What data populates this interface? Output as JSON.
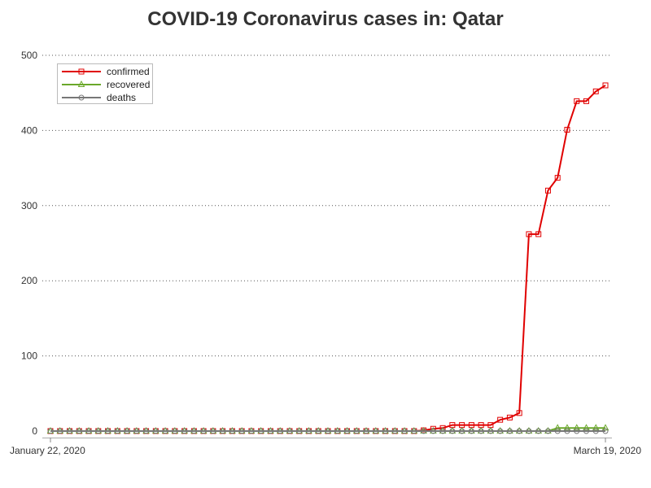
{
  "chart_data": {
    "type": "line",
    "title": "COVID-19 Coronavirus cases in: Qatar",
    "x_start_label": "January 22, 2020",
    "x_end_label": "March 19, 2020",
    "x_ticks": [
      "January 22, 2020",
      "March 19, 2020"
    ],
    "ylim": [
      0,
      500
    ],
    "y_ticks": [
      0,
      100,
      200,
      300,
      400,
      500
    ],
    "grid": "horizontal dotted",
    "legend_position": "top-left",
    "series": [
      {
        "name": "confirmed",
        "color": "#e00000",
        "marker": "square",
        "values": [
          0,
          0,
          0,
          0,
          0,
          0,
          0,
          0,
          0,
          0,
          0,
          0,
          0,
          0,
          0,
          0,
          0,
          0,
          0,
          0,
          0,
          0,
          0,
          0,
          0,
          0,
          0,
          0,
          0,
          0,
          0,
          0,
          0,
          0,
          0,
          0,
          0,
          0,
          0,
          1,
          3,
          4,
          8,
          8,
          8,
          8,
          8,
          15,
          18,
          24,
          262,
          262,
          320,
          337,
          401,
          439,
          439,
          452,
          460
        ]
      },
      {
        "name": "recovered",
        "color": "#6aa82a",
        "marker": "triangle",
        "values": [
          0,
          0,
          0,
          0,
          0,
          0,
          0,
          0,
          0,
          0,
          0,
          0,
          0,
          0,
          0,
          0,
          0,
          0,
          0,
          0,
          0,
          0,
          0,
          0,
          0,
          0,
          0,
          0,
          0,
          0,
          0,
          0,
          0,
          0,
          0,
          0,
          0,
          0,
          0,
          0,
          0,
          0,
          0,
          0,
          0,
          0,
          0,
          0,
          0,
          0,
          0,
          0,
          0,
          4,
          4,
          4,
          4,
          4,
          4
        ]
      },
      {
        "name": "deaths",
        "color": "#777777",
        "marker": "circle",
        "values": [
          0,
          0,
          0,
          0,
          0,
          0,
          0,
          0,
          0,
          0,
          0,
          0,
          0,
          0,
          0,
          0,
          0,
          0,
          0,
          0,
          0,
          0,
          0,
          0,
          0,
          0,
          0,
          0,
          0,
          0,
          0,
          0,
          0,
          0,
          0,
          0,
          0,
          0,
          0,
          0,
          0,
          0,
          0,
          0,
          0,
          0,
          0,
          0,
          0,
          0,
          0,
          0,
          0,
          0,
          0,
          0,
          0,
          0,
          0
        ]
      }
    ]
  }
}
